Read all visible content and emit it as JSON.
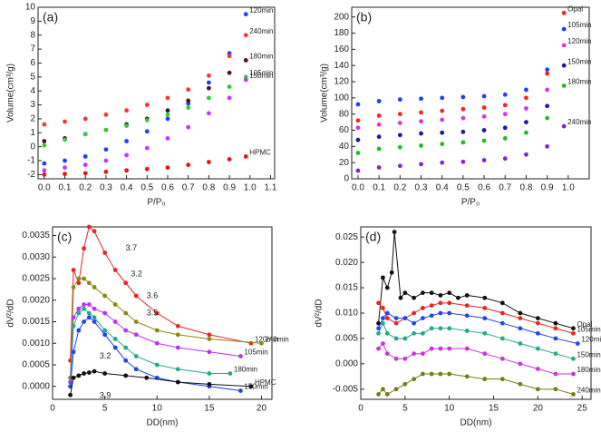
{
  "chart_data": [
    {
      "type": "scatter",
      "label": "(a)",
      "xlabel": "P/P₀",
      "ylabel": "Volume(cm³/g)",
      "xlim": [
        -0.03,
        1.12
      ],
      "ylim": [
        -2.3,
        10
      ],
      "xticks": [
        {
          "value": 0,
          "label": "0.0"
        },
        0.1,
        0.2,
        0.3,
        0.4,
        0.5,
        0.6,
        0.7,
        0.8,
        0.9,
        {
          "value": 1,
          "label": "1.0"
        },
        1.1
      ],
      "yticks": [
        -2,
        -1,
        0,
        1,
        2,
        3,
        4,
        5,
        6,
        7,
        8,
        9,
        10
      ],
      "x": [
        0,
        0.1,
        0.2,
        0.3,
        0.4,
        0.5,
        0.6,
        0.7,
        0.8,
        0.9,
        0.98
      ],
      "series": [
        {
          "name": "120min",
          "color": "#1f3fff",
          "values": [
            -1.2,
            -1.0,
            -0.7,
            -0.2,
            0.4,
            1.1,
            2.0,
            3.1,
            4.6,
            6.7,
            9.5
          ]
        },
        {
          "name": "240min",
          "color": "#ff3333",
          "values": [
            1.6,
            1.8,
            2.0,
            2.3,
            2.6,
            3.0,
            3.5,
            4.1,
            5.1,
            6.5,
            8.0
          ]
        },
        {
          "name": "180min",
          "color": "#4a1030",
          "values": [
            0.4,
            0.6,
            0.9,
            1.2,
            1.6,
            2.0,
            2.6,
            3.3,
            4.2,
            5.3,
            6.2
          ]
        },
        {
          "name": "105min",
          "color": "#33cc33",
          "values": [
            0.1,
            0.5,
            0.9,
            1.2,
            1.5,
            1.9,
            2.3,
            2.8,
            3.5,
            4.3,
            5.0
          ]
        },
        {
          "name": "150min",
          "color": "#cc33ff",
          "values": [
            -1.7,
            -1.5,
            -1.3,
            -1.0,
            -0.6,
            -0.1,
            0.6,
            1.4,
            2.4,
            3.5,
            4.8
          ]
        },
        {
          "name": "HPMC",
          "color": "#ee1111",
          "values": [
            -2.0,
            -1.95,
            -1.9,
            -1.8,
            -1.7,
            -1.6,
            -1.5,
            -1.3,
            -1.1,
            -0.9,
            -0.7
          ]
        }
      ]
    },
    {
      "type": "scatter",
      "label": "(b)",
      "xlabel": "P/P₀",
      "ylabel": "Volume(cm³/g)",
      "xlim": [
        -0.03,
        1.1
      ],
      "ylim": [
        0,
        212
      ],
      "xticks": [
        {
          "value": 0,
          "label": "0.0"
        },
        0.1,
        0.2,
        0.3,
        0.4,
        0.5,
        0.6,
        0.7,
        0.8,
        0.9,
        {
          "value": 1,
          "label": "1.0"
        }
      ],
      "yticks": [
        0,
        20,
        40,
        60,
        80,
        100,
        120,
        140,
        160,
        180,
        200
      ],
      "x": [
        0,
        0.1,
        0.2,
        0.3,
        0.4,
        0.5,
        0.6,
        0.7,
        0.8,
        0.9,
        0.98
      ],
      "series": [
        {
          "name": "Opal",
          "color": "#ff2222",
          "values": [
            72,
            78,
            80,
            82,
            84,
            86,
            88,
            91,
            100,
            130,
            205
          ]
        },
        {
          "name": "105min",
          "color": "#1f3fff",
          "values": [
            92,
            96,
            98,
            99,
            100,
            101,
            102,
            104,
            110,
            135,
            185
          ]
        },
        {
          "name": "120min",
          "color": "#dd33dd",
          "values": [
            63,
            67,
            69,
            71,
            73,
            75,
            77,
            80,
            87,
            110,
            165
          ]
        },
        {
          "name": "150min",
          "color": "#1a1aa0",
          "values": [
            48,
            52,
            54,
            56,
            57,
            58,
            60,
            63,
            70,
            90,
            140
          ]
        },
        {
          "name": "180min",
          "color": "#22bb22",
          "values": [
            32,
            37,
            39,
            41,
            43,
            45,
            47,
            50,
            57,
            75,
            115
          ]
        },
        {
          "name": "240min",
          "color": "#8822cc",
          "values": [
            10,
            14,
            16,
            18,
            20,
            21,
            23,
            25,
            30,
            40,
            65
          ]
        }
      ]
    },
    {
      "type": "line",
      "label": "(c)",
      "xlabel": "DD(nm)",
      "ylabel": "dV²/dD",
      "xlim": [
        0,
        21
      ],
      "ylim": [
        -0.0003,
        0.0037
      ],
      "xticks": [
        0,
        5,
        10,
        15,
        20
      ],
      "yticks": [
        {
          "value": 0,
          "label": "0.0000"
        },
        {
          "value": 0.0005,
          "label": "0.0005"
        },
        {
          "value": 0.001,
          "label": "0.0010"
        },
        {
          "value": 0.0015,
          "label": "0.0015"
        },
        {
          "value": 0.002,
          "label": "0.0020"
        },
        {
          "value": 0.0025,
          "label": "0.0025"
        },
        {
          "value": 0.003,
          "label": "0.0030"
        },
        {
          "value": 0.0035,
          "label": "0.0035"
        }
      ],
      "series": [
        {
          "name": "120min",
          "color": "#ee2222",
          "x": [
            1.7,
            2,
            2.5,
            3,
            3.5,
            4,
            5,
            6,
            7,
            8,
            10,
            12,
            15,
            19
          ],
          "values": [
            0.0006,
            0.0027,
            0.0024,
            0.0032,
            0.0037,
            0.0036,
            0.0031,
            0.0027,
            0.0024,
            0.0021,
            0.0017,
            0.0014,
            0.0012,
            0.001
          ]
        },
        {
          "name": "240min",
          "color": "#8a8a10",
          "x": [
            1.7,
            2,
            2.5,
            3,
            3.5,
            4,
            5,
            6,
            7,
            8,
            10,
            12,
            15,
            20
          ],
          "values": [
            0.0002,
            0.0023,
            0.0025,
            0.0025,
            0.0024,
            0.0023,
            0.0021,
            0.0019,
            0.0017,
            0.0015,
            0.0013,
            0.0012,
            0.0011,
            0.001
          ]
        },
        {
          "name": "105min",
          "color": "#bb33ee",
          "x": [
            1.7,
            2,
            2.5,
            3,
            3.5,
            4,
            5,
            6,
            7,
            8,
            10,
            12,
            15,
            18
          ],
          "values": [
            0.0001,
            0.0016,
            0.0018,
            0.0019,
            0.0019,
            0.0018,
            0.0017,
            0.0015,
            0.0013,
            0.0012,
            0.001,
            0.0009,
            0.0008,
            0.0007
          ]
        },
        {
          "name": "180min",
          "color": "#22aa88",
          "x": [
            1.7,
            2,
            2.5,
            3,
            3.5,
            4,
            5,
            6,
            7,
            8,
            10,
            12,
            15,
            17
          ],
          "values": [
            0,
            0.0014,
            0.0017,
            0.0018,
            0.0017,
            0.0016,
            0.0013,
            0.0011,
            0.0009,
            0.0007,
            0.0005,
            0.0004,
            0.0003,
            0.0003
          ]
        },
        {
          "name": "150min",
          "color": "#2244ee",
          "x": [
            1.7,
            2,
            2.5,
            3,
            3.5,
            4,
            5,
            6,
            7,
            8,
            10,
            12,
            15,
            18
          ],
          "values": [
            0,
            0.0008,
            0.0013,
            0.0015,
            0.0016,
            0.0015,
            0.0012,
            0.0009,
            0.0006,
            0.0004,
            0.0002,
            0.0001,
            0,
            -0.0001
          ]
        },
        {
          "name": "HPMC",
          "color": "#111111",
          "x": [
            1.7,
            2,
            2.5,
            3,
            3.5,
            4,
            5,
            7,
            9,
            12,
            15,
            19
          ],
          "values": [
            -0.0002,
            0.0002,
            0.00025,
            0.0003,
            0.00032,
            0.00035,
            0.0003,
            0.00025,
            0.0002,
            0.0001,
            5e-05,
            0
          ]
        }
      ],
      "annotations": [
        {
          "text": "3.7",
          "x": 7,
          "y": 0.0032
        },
        {
          "text": "3.2",
          "x": 7.5,
          "y": 0.0026
        },
        {
          "text": "3.6",
          "x": 9,
          "y": 0.0021
        },
        {
          "text": "3.5",
          "x": 9,
          "y": 0.0017
        },
        {
          "text": "3.2",
          "x": 4.5,
          "y": 0.0007
        },
        {
          "text": "3.9",
          "x": 4.5,
          "y": -0.00022
        }
      ]
    },
    {
      "type": "line",
      "label": "(d)",
      "xlabel": "DD(nm)",
      "ylabel": "dV²/dD",
      "xlim": [
        0,
        26
      ],
      "ylim": [
        -0.007,
        0.027
      ],
      "xticks": [
        0,
        5,
        10,
        15,
        20,
        25
      ],
      "yticks": [
        -0.005,
        {
          "value": 0,
          "label": "0.000"
        },
        0.005,
        {
          "value": 0.01,
          "label": "0.010"
        },
        0.015,
        {
          "value": 0.02,
          "label": "0.020"
        },
        0.025
      ],
      "series": [
        {
          "name": "Opal",
          "color": "#111111",
          "x": [
            2,
            2.5,
            3,
            3.5,
            3.8,
            4.5,
            5,
            6,
            7,
            8,
            9,
            10,
            11,
            12,
            14,
            16,
            18,
            20,
            22,
            24
          ],
          "values": [
            0.008,
            0.017,
            0.015,
            0.018,
            0.026,
            0.013,
            0.014,
            0.013,
            0.014,
            0.014,
            0.0135,
            0.014,
            0.013,
            0.0135,
            0.013,
            0.012,
            0.01,
            0.009,
            0.008,
            0.007
          ]
        },
        {
          "name": "105min",
          "color": "#ee2222",
          "x": [
            2,
            2.5,
            3,
            4,
            5,
            6,
            7,
            8,
            9,
            10,
            12,
            14,
            16,
            18,
            20,
            22,
            24
          ],
          "values": [
            0.012,
            0.011,
            0.009,
            0.008,
            0.009,
            0.01,
            0.011,
            0.0115,
            0.012,
            0.012,
            0.0115,
            0.011,
            0.01,
            0.009,
            0.008,
            0.007,
            0.006
          ]
        },
        {
          "name": "120min",
          "color": "#2244ee",
          "x": [
            2,
            2.5,
            3,
            4,
            5,
            6,
            7,
            8,
            9,
            10,
            12,
            14,
            16,
            18,
            20,
            22,
            24.5
          ],
          "values": [
            0.007,
            0.009,
            0.01,
            0.009,
            0.009,
            0.008,
            0.009,
            0.0095,
            0.01,
            0.01,
            0.0095,
            0.009,
            0.008,
            0.007,
            0.006,
            0.005,
            0.004
          ]
        },
        {
          "name": "150min",
          "color": "#22aa88",
          "x": [
            2,
            2.5,
            3,
            4,
            5,
            6,
            7,
            8,
            9,
            10,
            12,
            14,
            16,
            18,
            20,
            22,
            24
          ],
          "values": [
            0.006,
            0.008,
            0.006,
            0.005,
            0.005,
            0.006,
            0.006,
            0.007,
            0.007,
            0.007,
            0.0065,
            0.006,
            0.005,
            0.004,
            0.003,
            0.002,
            0.001
          ]
        },
        {
          "name": "180min",
          "color": "#cc33dd",
          "x": [
            2,
            2.5,
            3,
            4,
            5,
            6,
            7,
            8,
            9,
            10,
            12,
            14,
            16,
            18,
            20,
            22,
            24
          ],
          "values": [
            0.003,
            0.004,
            0.002,
            0.001,
            0.001,
            0.002,
            0.002,
            0.003,
            0.003,
            0.003,
            0.003,
            0.002,
            0.001,
            0,
            -0.001,
            -0.002,
            -0.002
          ]
        },
        {
          "name": "240min",
          "color": "#7a7a10",
          "x": [
            2,
            2.5,
            3,
            4,
            5,
            6,
            7,
            8,
            9,
            10,
            12,
            14,
            16,
            18,
            20,
            22,
            24
          ],
          "values": [
            -0.006,
            -0.005,
            -0.006,
            -0.005,
            -0.004,
            -0.003,
            -0.002,
            -0.002,
            -0.002,
            -0.002,
            -0.0025,
            -0.003,
            -0.003,
            -0.004,
            -0.005,
            -0.005,
            -0.006
          ]
        }
      ]
    }
  ]
}
